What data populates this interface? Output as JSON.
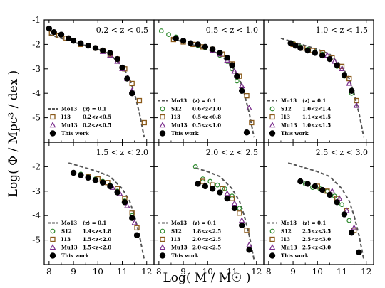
{
  "figure": {
    "ylabel": "Log( Φ / Mpc³ / dex )",
    "xlabel": "Log( M / M☉ )"
  },
  "colors": {
    "mo13": "#555555",
    "s12": "#2f8a2f",
    "i13": "#8a5a1a",
    "mu13": "#7a2c8c",
    "this": "#000000"
  },
  "chart_data": [
    {
      "type": "line",
      "title": "0.2 < z < 0.5",
      "xlim": [
        7.8,
        12.3
      ],
      "ylim": [
        -6,
        -1
      ],
      "grid": false,
      "legend": "bottom-left",
      "legend_entries": [
        {
          "key": "mo13",
          "label": "Mo13",
          "range": "⟨z⟩ = 0.1"
        },
        {
          "key": "i13",
          "label": "I13",
          "range": "0.2<z<0.5"
        },
        {
          "key": "mu13",
          "label": "Mu13",
          "range": "0.2<z<0.5"
        },
        {
          "key": "this",
          "label": "This work",
          "range": ""
        }
      ],
      "series": [
        {
          "key": "mo13",
          "x": [
            8.0,
            8.5,
            9.0,
            9.5,
            10.0,
            10.5,
            11.0,
            11.3,
            11.5,
            11.7,
            11.9
          ],
          "y": [
            -1.6,
            -1.75,
            -1.9,
            -2.05,
            -2.2,
            -2.4,
            -2.9,
            -3.4,
            -4.0,
            -4.8,
            -5.8
          ]
        },
        {
          "key": "i13",
          "x": [
            8.1,
            8.4,
            8.7,
            9.0,
            9.3,
            9.6,
            9.9,
            10.2,
            10.5,
            10.8,
            11.1,
            11.4,
            11.7,
            11.9
          ],
          "y": [
            -1.55,
            -1.65,
            -1.75,
            -1.85,
            -2.0,
            -2.05,
            -2.15,
            -2.25,
            -2.4,
            -2.6,
            -3.0,
            -3.6,
            -4.3,
            -5.2
          ]
        },
        {
          "key": "mu13",
          "x": [
            10.2,
            10.5,
            10.8,
            11.0,
            11.2,
            11.4
          ],
          "y": [
            -2.3,
            -2.45,
            -2.7,
            -3.0,
            -3.4,
            -3.9
          ]
        },
        {
          "key": "this",
          "x": [
            8.0,
            8.2,
            8.5,
            8.8,
            9.0,
            9.3,
            9.6,
            9.9,
            10.2,
            10.5,
            10.8,
            11.0,
            11.2,
            11.4
          ],
          "y": [
            -1.35,
            -1.5,
            -1.6,
            -1.75,
            -1.85,
            -1.95,
            -2.05,
            -2.15,
            -2.25,
            -2.35,
            -2.6,
            -2.95,
            -3.4,
            -4.0
          ]
        }
      ]
    },
    {
      "type": "line",
      "title": "0.5 < z < 1.0",
      "xlim": [
        7.8,
        12.3
      ],
      "ylim": [
        -6,
        -1
      ],
      "grid": false,
      "legend": "bottom-left",
      "legend_entries": [
        {
          "key": "mo13",
          "label": "Mo13",
          "range": "⟨z⟩ = 0.1"
        },
        {
          "key": "s12",
          "label": "S12",
          "range": "0.6<z<1.0"
        },
        {
          "key": "i13",
          "label": "I13",
          "range": "0.5<z<0.8"
        },
        {
          "key": "mu13",
          "label": "Mu13",
          "range": "0.5<z<1.0"
        },
        {
          "key": "this",
          "label": "This work",
          "range": ""
        }
      ],
      "series": [
        {
          "key": "mo13",
          "x": [
            8.5,
            9.0,
            9.5,
            10.0,
            10.5,
            11.0,
            11.3,
            11.5,
            11.7,
            11.9
          ],
          "y": [
            -1.75,
            -1.9,
            -2.05,
            -2.2,
            -2.4,
            -2.9,
            -3.4,
            -4.0,
            -4.8,
            -5.8
          ]
        },
        {
          "key": "s12",
          "x": [
            8.1,
            8.4,
            8.7,
            9.0,
            9.3,
            9.6,
            9.9,
            10.2,
            10.5,
            10.8,
            11.0,
            11.2
          ],
          "y": [
            -1.45,
            -1.6,
            -1.7,
            -1.85,
            -1.95,
            -2.05,
            -2.15,
            -2.25,
            -2.45,
            -2.7,
            -3.0,
            -3.5
          ]
        },
        {
          "key": "i13",
          "x": [
            8.6,
            9.0,
            9.4,
            9.8,
            10.2,
            10.6,
            11.0,
            11.3,
            11.6,
            11.8
          ],
          "y": [
            -1.8,
            -1.9,
            -2.0,
            -2.1,
            -2.2,
            -2.4,
            -2.8,
            -3.3,
            -4.1,
            -5.2
          ]
        },
        {
          "key": "mu13",
          "x": [
            10.2,
            10.5,
            10.8,
            11.1,
            11.4,
            11.7
          ],
          "y": [
            -2.25,
            -2.4,
            -2.65,
            -3.1,
            -3.7,
            -4.6
          ]
        },
        {
          "key": "this",
          "x": [
            8.7,
            9.0,
            9.3,
            9.6,
            9.9,
            10.2,
            10.5,
            10.8,
            11.0,
            11.2,
            11.4,
            11.6
          ],
          "y": [
            -1.75,
            -1.85,
            -1.95,
            -2.0,
            -2.1,
            -2.2,
            -2.35,
            -2.55,
            -2.85,
            -3.3,
            -3.9,
            -5.6
          ]
        }
      ]
    },
    {
      "type": "line",
      "title": "1.0 < z < 1.5",
      "xlim": [
        7.8,
        12.3
      ],
      "ylim": [
        -6,
        -1
      ],
      "grid": false,
      "legend": "bottom-left",
      "legend_entries": [
        {
          "key": "mo13",
          "label": "Mo13",
          "range": "⟨z⟩ = 0.1"
        },
        {
          "key": "s12",
          "label": "S12",
          "range": "1.0<z<1.4"
        },
        {
          "key": "i13",
          "label": "I13",
          "range": "1.1<z<1.5"
        },
        {
          "key": "mu13",
          "label": "Mu13",
          "range": "1.0<z<1.5"
        },
        {
          "key": "this",
          "label": "This work",
          "range": ""
        }
      ],
      "series": [
        {
          "key": "mo13",
          "x": [
            8.5,
            9.0,
            9.5,
            10.0,
            10.5,
            11.0,
            11.3,
            11.5,
            11.7,
            11.9
          ],
          "y": [
            -1.75,
            -1.9,
            -2.05,
            -2.2,
            -2.4,
            -2.9,
            -3.4,
            -4.0,
            -4.8,
            -5.8
          ]
        },
        {
          "key": "s12",
          "x": [
            9.0,
            9.3,
            9.6,
            9.9,
            10.2,
            10.5,
            10.8,
            11.1,
            11.4
          ],
          "y": [
            -1.95,
            -2.1,
            -2.2,
            -2.3,
            -2.4,
            -2.6,
            -2.9,
            -3.3,
            -4.0
          ]
        },
        {
          "key": "i13",
          "x": [
            9.0,
            9.4,
            9.8,
            10.2,
            10.6,
            11.0,
            11.3,
            11.6
          ],
          "y": [
            -2.0,
            -2.15,
            -2.25,
            -2.35,
            -2.55,
            -2.9,
            -3.4,
            -4.3
          ]
        },
        {
          "key": "mu13",
          "x": [
            10.4,
            10.7,
            11.0,
            11.3,
            11.6
          ],
          "y": [
            -2.45,
            -2.7,
            -3.0,
            -3.6,
            -4.5
          ]
        },
        {
          "key": "this",
          "x": [
            8.9,
            9.1,
            9.3,
            9.6,
            9.9,
            10.2,
            10.5,
            10.8,
            11.1,
            11.4
          ],
          "y": [
            -1.95,
            -2.05,
            -2.15,
            -2.25,
            -2.35,
            -2.45,
            -2.6,
            -2.85,
            -3.25,
            -3.9
          ]
        }
      ]
    },
    {
      "type": "line",
      "title": "1.5 < z < 2.0",
      "xlim": [
        7.8,
        12.3
      ],
      "ylim": [
        -6,
        -1
      ],
      "grid": false,
      "legend": "bottom-left",
      "legend_entries": [
        {
          "key": "mo13",
          "label": "Mo13",
          "range": "⟨z⟩ = 0.1"
        },
        {
          "key": "s12",
          "label": "S12",
          "range": "1.4<z<1.8"
        },
        {
          "key": "i13",
          "label": "I13",
          "range": "1.5<z<2.0"
        },
        {
          "key": "mu13",
          "label": "Mu13",
          "range": "1.5<z<2.0"
        },
        {
          "key": "this",
          "label": "This work",
          "range": ""
        }
      ],
      "series": [
        {
          "key": "mo13",
          "x": [
            8.8,
            9.0,
            9.5,
            10.0,
            10.5,
            11.0,
            11.3,
            11.5,
            11.7,
            11.9
          ],
          "y": [
            -1.85,
            -1.9,
            -2.05,
            -2.2,
            -2.4,
            -2.9,
            -3.4,
            -4.0,
            -4.8,
            -5.8
          ]
        },
        {
          "key": "s12",
          "x": [
            9.3,
            9.6,
            9.9,
            10.2,
            10.5,
            10.8,
            11.1,
            11.4
          ],
          "y": [
            -2.3,
            -2.4,
            -2.5,
            -2.6,
            -2.75,
            -3.0,
            -3.4,
            -4.0
          ]
        },
        {
          "key": "i13",
          "x": [
            9.6,
            10.0,
            10.4,
            10.8,
            11.1,
            11.4,
            11.6
          ],
          "y": [
            -2.4,
            -2.5,
            -2.65,
            -2.9,
            -3.3,
            -3.9,
            -4.5
          ]
        },
        {
          "key": "mu13",
          "x": [
            10.6,
            10.9,
            11.2,
            11.5
          ],
          "y": [
            -2.85,
            -3.1,
            -3.6,
            -4.3
          ]
        },
        {
          "key": "this",
          "x": [
            9.0,
            9.3,
            9.6,
            9.9,
            10.2,
            10.5,
            10.8,
            11.1,
            11.4,
            11.6
          ],
          "y": [
            -2.25,
            -2.35,
            -2.45,
            -2.55,
            -2.65,
            -2.8,
            -3.05,
            -3.45,
            -4.1,
            -4.8
          ]
        }
      ]
    },
    {
      "type": "line",
      "title": "2.0 < z < 2.5",
      "xlim": [
        7.8,
        12.3
      ],
      "ylim": [
        -6,
        -1
      ],
      "grid": false,
      "legend": "bottom-left",
      "legend_entries": [
        {
          "key": "mo13",
          "label": "Mo13",
          "range": "⟨z⟩ = 0.1"
        },
        {
          "key": "s12",
          "label": "S12",
          "range": "1.8<z<2.5"
        },
        {
          "key": "i13",
          "label": "I13",
          "range": "2.0<z<2.5"
        },
        {
          "key": "mu13",
          "label": "Mu13",
          "range": "2.0<z<2.5"
        },
        {
          "key": "this",
          "label": "This work",
          "range": ""
        }
      ],
      "series": [
        {
          "key": "mo13",
          "x": [
            9.5,
            10.0,
            10.5,
            11.0,
            11.3,
            11.5,
            11.7,
            11.9
          ],
          "y": [
            -2.05,
            -2.2,
            -2.4,
            -2.9,
            -3.4,
            -4.0,
            -4.8,
            -5.8
          ]
        },
        {
          "key": "s12",
          "x": [
            9.5,
            9.8,
            10.1,
            10.4,
            10.7,
            11.0,
            11.3
          ],
          "y": [
            -2.0,
            -2.5,
            -2.6,
            -2.75,
            -2.9,
            -3.2,
            -3.7
          ]
        },
        {
          "key": "i13",
          "x": [
            9.8,
            10.2,
            10.6,
            11.0,
            11.3,
            11.6
          ],
          "y": [
            -2.6,
            -2.75,
            -2.9,
            -3.3,
            -3.9,
            -4.6
          ]
        },
        {
          "key": "mu13",
          "x": [
            10.8,
            11.1,
            11.4,
            11.7
          ],
          "y": [
            -3.1,
            -3.5,
            -4.2,
            -5.2
          ]
        },
        {
          "key": "this",
          "x": [
            9.6,
            9.9,
            10.2,
            10.5,
            10.8,
            11.1,
            11.4,
            11.7
          ],
          "y": [
            -2.7,
            -2.8,
            -2.9,
            -3.05,
            -3.3,
            -3.7,
            -4.4,
            -5.4
          ]
        }
      ]
    },
    {
      "type": "line",
      "title": "2.5 < z < 3.0",
      "xlim": [
        7.8,
        12.3
      ],
      "ylim": [
        -6,
        -1
      ],
      "grid": false,
      "legend": "bottom-left",
      "legend_entries": [
        {
          "key": "mo13",
          "label": "Mo13",
          "range": "⟨z⟩ = 0.1"
        },
        {
          "key": "s12",
          "label": "S12",
          "range": "2.5<z<3.5"
        },
        {
          "key": "i13",
          "label": "I13",
          "range": "2.5<z<3.0"
        },
        {
          "key": "mu13",
          "label": "Mu13",
          "range": "2.5<z<3.0"
        },
        {
          "key": "this",
          "label": "This work",
          "range": ""
        }
      ],
      "series": [
        {
          "key": "mo13",
          "x": [
            8.8,
            9.0,
            9.5,
            10.0,
            10.5,
            11.0,
            11.3,
            11.5,
            11.7,
            11.9
          ],
          "y": [
            -1.85,
            -1.9,
            -2.05,
            -2.2,
            -2.4,
            -2.9,
            -3.4,
            -4.0,
            -4.8,
            -5.8
          ]
        },
        {
          "key": "s12",
          "x": [
            9.5,
            9.8,
            10.1,
            10.4,
            10.7,
            11.0,
            11.3
          ],
          "y": [
            -2.7,
            -2.85,
            -2.9,
            -3.0,
            -3.2,
            -3.55,
            -4.2
          ]
        },
        {
          "key": "i13",
          "x": [
            10.0,
            10.4,
            10.8,
            11.2,
            11.5
          ],
          "y": [
            -2.8,
            -3.0,
            -3.3,
            -3.8,
            -4.6
          ]
        },
        {
          "key": "mu13",
          "x": [
            10.6,
            10.9,
            11.2,
            11.5
          ],
          "y": [
            -3.0,
            -3.3,
            -3.8,
            -4.5
          ]
        },
        {
          "key": "this",
          "x": [
            9.3,
            9.6,
            9.9,
            10.2,
            10.5,
            10.8,
            11.1,
            11.4,
            11.7
          ],
          "y": [
            -2.6,
            -2.7,
            -2.8,
            -2.95,
            -3.15,
            -3.45,
            -3.95,
            -4.7,
            -5.5
          ]
        }
      ]
    }
  ]
}
